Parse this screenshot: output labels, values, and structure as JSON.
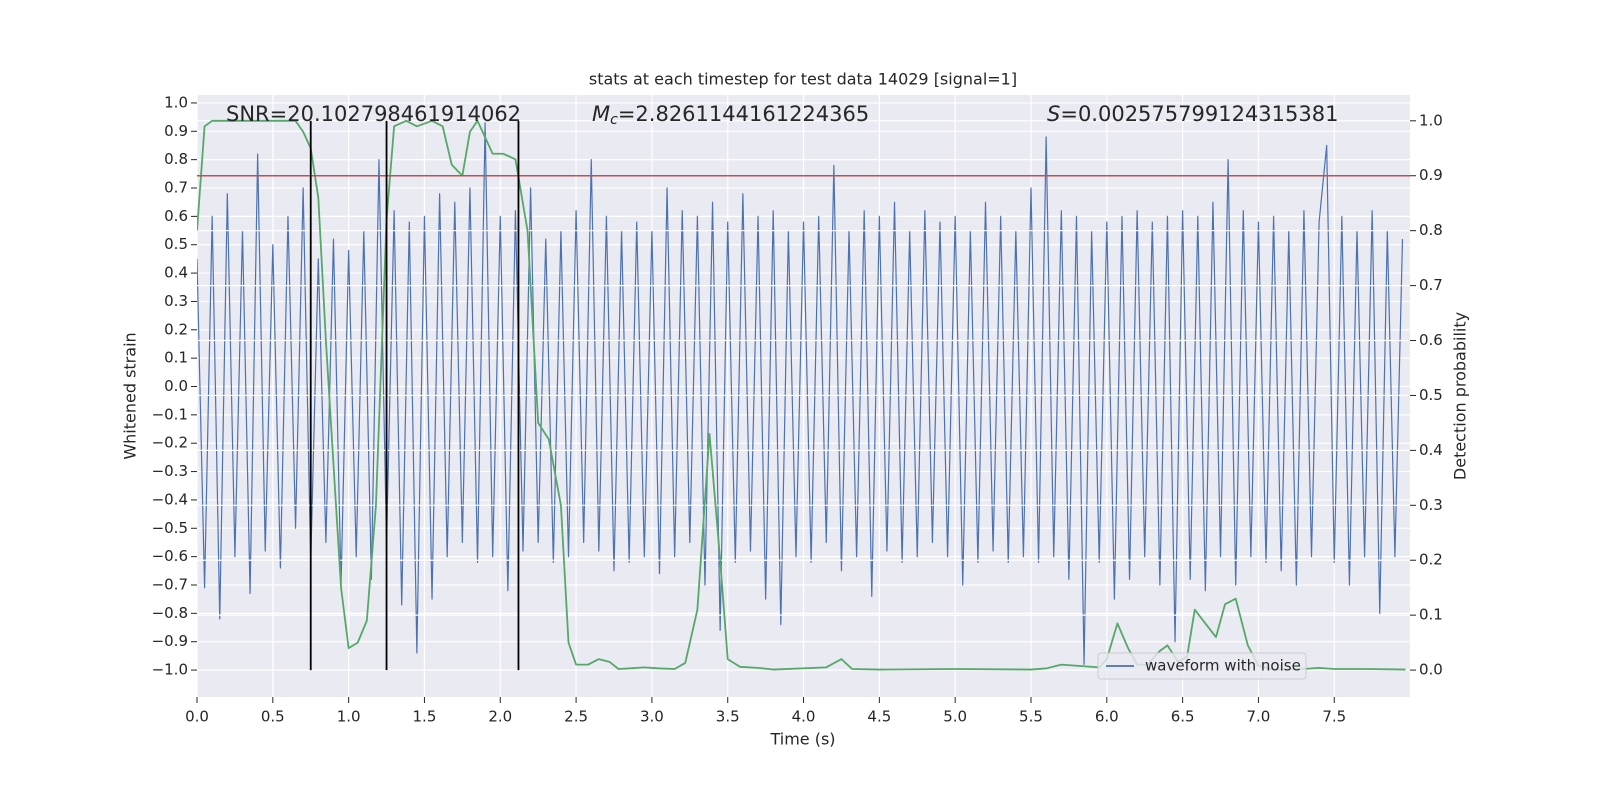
{
  "chart_data": {
    "type": "line",
    "title": "stats at each timestep for test data 14029 [signal=1]",
    "xlabel": "Time (s)",
    "ylabel": "Whitened strain",
    "y2label": "Detection probability",
    "annotations": [
      {
        "text": "SNR=20.102798461914062"
      },
      {
        "symbol": "M",
        "subscript": "c",
        "text": "=2.8261144161224365"
      },
      {
        "symbol": "S",
        "text": "=0.002575799124315381"
      }
    ],
    "xlim": [
      0,
      7.9995
    ],
    "ylim": [
      -1.095,
      1.028
    ],
    "y2lim": [
      -0.049,
      1.047
    ],
    "xticks": [
      {
        "value": 0,
        "label": "0.0"
      },
      {
        "value": 0.5,
        "label": "0.5"
      },
      {
        "value": 1,
        "label": "1.0"
      },
      {
        "value": 1.5,
        "label": "1.5"
      },
      {
        "value": 2,
        "label": "2.0"
      },
      {
        "value": 2.5,
        "label": "2.5"
      },
      {
        "value": 3,
        "label": "3.0"
      },
      {
        "value": 3.5,
        "label": "3.5"
      },
      {
        "value": 4,
        "label": "4.0"
      },
      {
        "value": 4.5,
        "label": "4.5"
      },
      {
        "value": 5,
        "label": "5.0"
      },
      {
        "value": 5.5,
        "label": "5.5"
      },
      {
        "value": 6,
        "label": "6.0"
      },
      {
        "value": 6.5,
        "label": "6.5"
      },
      {
        "value": 7,
        "label": "7.0"
      },
      {
        "value": 7.5,
        "label": "7.5"
      }
    ],
    "yticks": [
      {
        "value": -1,
        "label": "−1.0"
      },
      {
        "value": -0.9,
        "label": "−0.9"
      },
      {
        "value": -0.8,
        "label": "−0.8"
      },
      {
        "value": -0.7,
        "label": "−0.7"
      },
      {
        "value": -0.6,
        "label": "−0.6"
      },
      {
        "value": -0.5,
        "label": "−0.5"
      },
      {
        "value": -0.4,
        "label": "−0.4"
      },
      {
        "value": -0.3,
        "label": "−0.3"
      },
      {
        "value": -0.2,
        "label": "−0.2"
      },
      {
        "value": -0.1,
        "label": "−0.1"
      },
      {
        "value": 0,
        "label": "0.0"
      },
      {
        "value": 0.1,
        "label": "0.1"
      },
      {
        "value": 0.2,
        "label": "0.2"
      },
      {
        "value": 0.3,
        "label": "0.3"
      },
      {
        "value": 0.4,
        "label": "0.4"
      },
      {
        "value": 0.5,
        "label": "0.5"
      },
      {
        "value": 0.6,
        "label": "0.6"
      },
      {
        "value": 0.7,
        "label": "0.7"
      },
      {
        "value": 0.8,
        "label": "0.8"
      },
      {
        "value": 0.9,
        "label": "0.9"
      },
      {
        "value": 1,
        "label": "1.0"
      }
    ],
    "y2ticks": [
      {
        "value": 0,
        "label": "0.0"
      },
      {
        "value": 0.1,
        "label": "0.1"
      },
      {
        "value": 0.2,
        "label": "0.2"
      },
      {
        "value": 0.3,
        "label": "0.3"
      },
      {
        "value": 0.4,
        "label": "0.4"
      },
      {
        "value": 0.5,
        "label": "0.5"
      },
      {
        "value": 0.6,
        "label": "0.6"
      },
      {
        "value": 0.7,
        "label": "0.7"
      },
      {
        "value": 0.8,
        "label": "0.8"
      },
      {
        "value": 0.9,
        "label": "0.9"
      },
      {
        "value": 1,
        "label": "1.0"
      }
    ],
    "grid": true,
    "legend_loc": "lower right",
    "series": [
      {
        "name": "waveform with noise",
        "color": "#4c72b0",
        "axis": "y",
        "x": [
          0,
          0.05,
          0.1,
          0.15,
          0.2,
          0.25,
          0.3,
          0.35,
          0.4,
          0.45,
          0.5,
          0.55,
          0.6,
          0.65,
          0.7,
          0.75,
          0.8,
          0.85,
          0.9,
          0.95,
          1,
          1.05,
          1.1,
          1.15,
          1.2,
          1.25,
          1.3,
          1.35,
          1.4,
          1.45,
          1.5,
          1.55,
          1.6,
          1.65,
          1.7,
          1.75,
          1.8,
          1.85,
          1.9,
          1.95,
          2,
          2.05,
          2.1,
          2.15,
          2.2,
          2.25,
          2.3,
          2.35,
          2.4,
          2.45,
          2.5,
          2.55,
          2.6,
          2.65,
          2.7,
          2.75,
          2.8,
          2.85,
          2.9,
          2.95,
          3,
          3.05,
          3.1,
          3.15,
          3.2,
          3.25,
          3.3,
          3.35,
          3.4,
          3.45,
          3.5,
          3.55,
          3.6,
          3.65,
          3.7,
          3.75,
          3.8,
          3.85,
          3.9,
          3.95,
          4,
          4.05,
          4.1,
          4.15,
          4.2,
          4.25,
          4.3,
          4.35,
          4.4,
          4.45,
          4.5,
          4.55,
          4.6,
          4.65,
          4.7,
          4.75,
          4.8,
          4.85,
          4.9,
          4.95,
          5,
          5.05,
          5.1,
          5.15,
          5.2,
          5.25,
          5.3,
          5.35,
          5.4,
          5.45,
          5.5,
          5.55,
          5.6,
          5.65,
          5.7,
          5.75,
          5.8,
          5.85,
          5.9,
          5.95,
          6,
          6.05,
          6.1,
          6.15,
          6.2,
          6.25,
          6.3,
          6.35,
          6.4,
          6.45,
          6.5,
          6.55,
          6.6,
          6.65,
          6.7,
          6.75,
          6.8,
          6.85,
          6.9,
          6.95,
          7,
          7.05,
          7.1,
          7.15,
          7.2,
          7.25,
          7.3,
          7.35,
          7.4,
          7.45,
          7.5,
          7.55,
          7.6,
          7.65,
          7.7,
          7.75,
          7.8,
          7.85,
          7.9,
          7.95
        ],
        "values": [
          0.45,
          -0.71,
          0.6,
          -0.82,
          0.68,
          -0.6,
          0.55,
          -0.73,
          0.82,
          -0.58,
          0.5,
          -0.64,
          0.6,
          -0.5,
          0.7,
          -0.62,
          0.45,
          -0.55,
          0.52,
          -0.7,
          0.48,
          -0.6,
          0.55,
          -0.68,
          0.8,
          -0.55,
          0.62,
          -0.77,
          0.58,
          -0.94,
          0.6,
          -0.75,
          0.68,
          -0.6,
          0.65,
          -0.55,
          0.7,
          -0.62,
          0.93,
          -0.6,
          0.6,
          -0.72,
          0.62,
          -0.58,
          0.7,
          -0.55,
          0.52,
          -0.62,
          0.55,
          -0.6,
          0.62,
          -0.55,
          0.8,
          -0.58,
          0.6,
          -0.65,
          0.55,
          -0.62,
          0.58,
          -0.6,
          0.55,
          -0.66,
          0.7,
          -0.6,
          0.62,
          -0.55,
          0.6,
          -0.7,
          0.65,
          -0.86,
          0.58,
          -0.62,
          0.68,
          -0.58,
          0.6,
          -0.75,
          0.62,
          -0.84,
          0.55,
          -0.6,
          0.58,
          -0.62,
          0.6,
          -0.55,
          0.78,
          -0.65,
          0.55,
          -0.6,
          0.62,
          -0.74,
          0.6,
          -0.58,
          0.65,
          -0.62,
          0.55,
          -0.6,
          0.62,
          -0.55,
          0.58,
          -0.6,
          0.6,
          -0.7,
          0.55,
          -0.62,
          0.65,
          -0.58,
          0.6,
          -0.62,
          0.55,
          -0.6,
          0.7,
          -0.62,
          0.88,
          -0.6,
          0.62,
          -0.68,
          0.6,
          -0.98,
          0.55,
          -0.62,
          0.58,
          -0.75,
          0.6,
          -0.68,
          0.62,
          -0.6,
          0.58,
          -0.7,
          0.6,
          -0.9,
          0.62,
          -0.68,
          0.6,
          -0.72,
          0.65,
          -0.6,
          0.8,
          -0.7,
          0.62,
          -0.6,
          0.58,
          -0.62,
          0.6,
          -0.65,
          0.55,
          -0.7,
          0.62,
          -0.6,
          0.58,
          0.85,
          -0.62,
          0.6,
          -0.7,
          0.55,
          -0.6,
          0.62,
          -0.8,
          0.55,
          -0.6,
          0.52
        ]
      },
      {
        "color": "#55a868",
        "axis": "y2",
        "x": [
          0,
          0.05,
          0.1,
          0.2,
          0.3,
          0.4,
          0.5,
          0.6,
          0.65,
          0.7,
          0.75,
          0.8,
          0.85,
          0.95,
          1,
          1.06,
          1.12,
          1.18,
          1.25,
          1.3,
          1.38,
          1.45,
          1.55,
          1.62,
          1.68,
          1.75,
          1.8,
          1.85,
          1.95,
          2.02,
          2.1,
          2.18,
          2.25,
          2.32,
          2.4,
          2.45,
          2.5,
          2.58,
          2.65,
          2.72,
          2.78,
          2.85,
          2.95,
          3.05,
          3.15,
          3.22,
          3.3,
          3.38,
          3.45,
          3.5,
          3.58,
          3.7,
          3.8,
          4.15,
          4.25,
          4.32,
          4.5,
          5,
          5.5,
          5.6,
          5.7,
          5.85,
          5.95,
          6,
          6.07,
          6.14,
          6.2,
          6.27,
          6.35,
          6.4,
          6.47,
          6.53,
          6.58,
          6.65,
          6.72,
          6.78,
          6.85,
          6.93,
          7,
          7.1,
          7.3,
          7.4,
          7.5,
          7.7,
          7.97
        ],
        "values": [
          0.8,
          0.99,
          1,
          1,
          1,
          1,
          1,
          1,
          1,
          0.98,
          0.95,
          0.86,
          0.6,
          0.15,
          0.04,
          0.05,
          0.09,
          0.3,
          0.82,
          0.99,
          1,
          0.99,
          1,
          0.99,
          0.92,
          0.9,
          0.98,
          1,
          0.94,
          0.94,
          0.93,
          0.8,
          0.45,
          0.42,
          0.3,
          0.05,
          0.01,
          0.01,
          0.02,
          0.015,
          0.002,
          0.003,
          0.005,
          0.003,
          0.002,
          0.013,
          0.11,
          0.43,
          0.2,
          0.02,
          0.006,
          0.004,
          0.001,
          0.005,
          0.02,
          0.002,
          0.001,
          0.002,
          0.001,
          0.003,
          0.01,
          0.007,
          0.005,
          0.02,
          0.085,
          0.04,
          0.01,
          0.01,
          0.035,
          0.045,
          0.015,
          0.025,
          0.11,
          0.085,
          0.06,
          0.12,
          0.13,
          0.045,
          0.008,
          0.001,
          0.002,
          0.004,
          0.002,
          0.002,
          0.001
        ]
      }
    ],
    "hline": {
      "value": 0.9,
      "axis": "y2",
      "color": "#c44e52"
    },
    "vlines": {
      "x": [
        0.75,
        1.25,
        2.12
      ],
      "ymin": 0,
      "ymax": 1,
      "axis": "y2",
      "color": "#000000"
    }
  }
}
